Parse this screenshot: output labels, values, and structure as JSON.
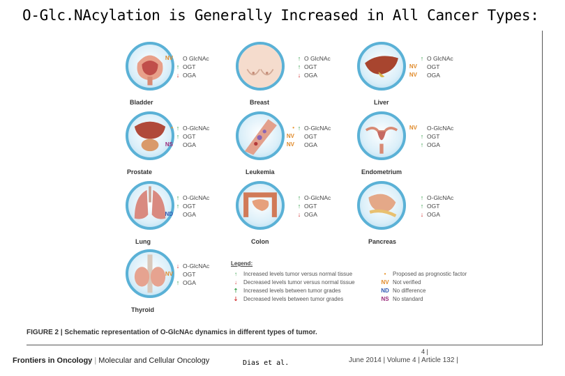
{
  "title": "O-Glc.NAcylation is Generally Increased in All Cancer Types:",
  "colors": {
    "up": "#2f9a45",
    "down": "#d22e2e",
    "prognostic": "#e8962f",
    "nv": "#e08a2a",
    "nd": "#2d57b3",
    "ns": "#9a2b7a",
    "ring": "#5ab1d6"
  },
  "panels": [
    {
      "name": "Bladder",
      "markers": [
        {
          "code": "NV",
          "arrow": "",
          "label": "O GlcNAc"
        },
        {
          "code": "",
          "arrow": "↑",
          "label": "OGT"
        },
        {
          "code": "",
          "arrow": "↓",
          "label": "OGA"
        }
      ]
    },
    {
      "name": "Breast",
      "markers": [
        {
          "code": "",
          "arrow": "↑",
          "label": "O GlcNAc"
        },
        {
          "code": "",
          "arrow": "↑",
          "label": "OGT"
        },
        {
          "code": "",
          "arrow": "↓",
          "label": "OGA"
        }
      ]
    },
    {
      "name": "Liver",
      "markers": [
        {
          "code": "",
          "arrow": "↑",
          "label": "O GlcNAc"
        },
        {
          "code": "NV",
          "arrow": "",
          "label": "OGT"
        },
        {
          "code": "NV",
          "arrow": "",
          "label": "OGA"
        }
      ]
    },
    {
      "name": "Prostate",
      "markers": [
        {
          "code": "",
          "arrow": "↑",
          "label": "O-GlcNAc"
        },
        {
          "code": "",
          "arrow": "↑",
          "label": "OGT"
        },
        {
          "code": "NS",
          "arrow": "",
          "label": "OGA"
        }
      ]
    },
    {
      "name": "Leukemia",
      "markers": [
        {
          "code": "",
          "arrow": "↑",
          "label": "O-GlcNAc"
        },
        {
          "code": "NV",
          "arrow": "",
          "label": "OGT"
        },
        {
          "code": "NV",
          "arrow": "",
          "label": "OGA"
        }
      ]
    },
    {
      "name": "Endometrium",
      "markers": [
        {
          "code": "NV",
          "arrow": "",
          "label": "O-GlcNAc"
        },
        {
          "code": "",
          "arrow": "↑",
          "label": "OGT"
        },
        {
          "code": "",
          "arrow": "↑",
          "label": "OGA"
        }
      ]
    },
    {
      "name": "Lung",
      "markers": [
        {
          "code": "",
          "arrow": "↑",
          "label": "O-GlcNAc"
        },
        {
          "code": "",
          "arrow": "↑",
          "label": "OGT"
        },
        {
          "code": "ND",
          "arrow": "",
          "label": "OGA"
        }
      ]
    },
    {
      "name": "Colon",
      "markers": [
        {
          "code": "",
          "arrow": "↑",
          "label": "O-GlcNAc"
        },
        {
          "code": "",
          "arrow": "↑",
          "label": "OGT"
        },
        {
          "code": "",
          "arrow": "↓",
          "label": "OGA"
        }
      ]
    },
    {
      "name": "Pancreas",
      "markers": [
        {
          "code": "",
          "arrow": "↑",
          "label": "O-GlcNAc"
        },
        {
          "code": "",
          "arrow": "↑",
          "label": "OGT"
        },
        {
          "code": "",
          "arrow": "↓",
          "label": "OGA"
        }
      ]
    },
    {
      "name": "Thyroid",
      "markers": [
        {
          "code": "",
          "arrow": "↓",
          "label": "O-GlcNAc"
        },
        {
          "code": "NV",
          "arrow": "",
          "label": "OGT"
        },
        {
          "code": "",
          "arrow": "↑",
          "label": "OGA"
        }
      ]
    }
  ],
  "legend": {
    "title": "Legend:",
    "left": [
      {
        "sym": "↑",
        "text": "Increased levels tumor versus normal tissue"
      },
      {
        "sym": "↓",
        "text": "Decreased levels tumor versus normal tissue"
      },
      {
        "sym": "⇡",
        "text": "Increased levels between tumor grades"
      },
      {
        "sym": "⇣",
        "text": "Decreased levels between tumor grades"
      }
    ],
    "right": [
      {
        "sym": "•",
        "text": "Proposed as prognostic factor"
      },
      {
        "sym": "NV",
        "text": "Not verified"
      },
      {
        "sym": "ND",
        "text": "No difference"
      },
      {
        "sym": "NS",
        "text": "No standard"
      }
    ]
  },
  "caption": {
    "label": "FIGURE 2 | Schematic representation of O-GlcNAc dynamics in different types of tumor."
  },
  "page_number": "4 |",
  "footer": {
    "journal": "Frontiers in Oncology",
    "section": "Molecular and Cellular Oncology",
    "author": "Dias et al.",
    "issue": "June 2014 | Volume 4 | Article 132 |"
  }
}
